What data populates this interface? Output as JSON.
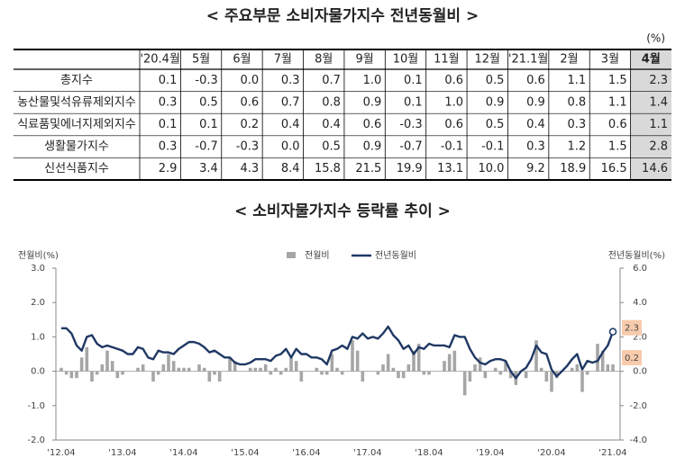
{
  "table": {
    "title": "< 주요부문 소비자물가지수 전년동월비 >",
    "unit": "(%)",
    "columns": [
      "'20.4월",
      "5월",
      "6월",
      "7월",
      "8월",
      "9월",
      "10월",
      "11월",
      "12월",
      "'21.1월",
      "2월",
      "3월",
      "4월"
    ],
    "rows": [
      {
        "label": "총지수",
        "values": [
          "0.1",
          "-0.3",
          "0.0",
          "0.3",
          "0.7",
          "1.0",
          "0.1",
          "0.6",
          "0.5",
          "0.6",
          "1.1",
          "1.5",
          "2.3"
        ]
      },
      {
        "label": "농산물및석유류제외지수",
        "values": [
          "0.3",
          "0.5",
          "0.6",
          "0.7",
          "0.8",
          "0.9",
          "0.1",
          "1.0",
          "0.9",
          "0.9",
          "0.8",
          "1.1",
          "1.4"
        ]
      },
      {
        "label": "식료품및에너지제외지수",
        "values": [
          "0.1",
          "0.1",
          "0.2",
          "0.4",
          "0.4",
          "0.6",
          "-0.3",
          "0.6",
          "0.5",
          "0.4",
          "0.3",
          "0.6",
          "1.1"
        ]
      },
      {
        "label": "생활물가지수",
        "values": [
          "0.3",
          "-0.7",
          "-0.3",
          "0.0",
          "0.5",
          "0.9",
          "-0.7",
          "-0.1",
          "-0.1",
          "0.3",
          "1.2",
          "1.5",
          "2.8"
        ]
      },
      {
        "label": "신선식품지수",
        "values": [
          "2.9",
          "3.4",
          "4.3",
          "8.4",
          "15.8",
          "21.5",
          "19.9",
          "13.1",
          "10.0",
          "9.2",
          "18.9",
          "16.5",
          "14.6"
        ]
      }
    ]
  },
  "chart_data": {
    "type": "combo",
    "title": "< 소비자물가지수 등락률 추이 >",
    "y_label": "전월비(%)",
    "y2_label": "전년동월비(%)",
    "categories": [
      "'12.04",
      null,
      null,
      null,
      null,
      null,
      null,
      null,
      null,
      null,
      null,
      null,
      "'13.04",
      null,
      null,
      null,
      null,
      null,
      null,
      null,
      null,
      null,
      null,
      null,
      "'14.04",
      null,
      null,
      null,
      null,
      null,
      null,
      null,
      null,
      null,
      null,
      null,
      "'15.04",
      null,
      null,
      null,
      null,
      null,
      null,
      null,
      null,
      null,
      null,
      null,
      "'16.04",
      null,
      null,
      null,
      null,
      null,
      null,
      null,
      null,
      null,
      null,
      null,
      "'17.04",
      null,
      null,
      null,
      null,
      null,
      null,
      null,
      null,
      null,
      null,
      null,
      "'18.04",
      null,
      null,
      null,
      null,
      null,
      null,
      null,
      null,
      null,
      null,
      null,
      "'19.04",
      null,
      null,
      null,
      null,
      null,
      null,
      null,
      null,
      null,
      null,
      null,
      "'20.04",
      null,
      null,
      null,
      null,
      null,
      null,
      null,
      null,
      null,
      null,
      null,
      "'21.04"
    ],
    "series": [
      {
        "name": "전월비",
        "type": "bar",
        "color": "#a6a6a6",
        "values": [
          0.1,
          -0.1,
          -0.2,
          -0.2,
          0.4,
          0.7,
          -0.3,
          -0.1,
          0.2,
          0.6,
          0.3,
          -0.2,
          -0.1,
          0.0,
          0.0,
          0.1,
          0.2,
          0.0,
          -0.3,
          -0.1,
          0.2,
          0.5,
          0.3,
          0.1,
          0.1,
          0.1,
          0.0,
          0.2,
          0.1,
          -0.3,
          -0.1,
          -0.3,
          0.0,
          0.4,
          0.3,
          0.0,
          0.0,
          0.1,
          0.1,
          0.1,
          0.2,
          -0.1,
          0.1,
          -0.1,
          0.1,
          0.4,
          0.3,
          -0.3,
          0.0,
          0.0,
          0.1,
          -0.1,
          -0.1,
          0.5,
          0.1,
          -0.1,
          0.0,
          0.9,
          0.6,
          -0.3,
          0.0,
          0.0,
          -0.1,
          0.2,
          0.5,
          0.1,
          -0.2,
          -0.2,
          0.2,
          0.6,
          0.8,
          -0.1,
          -0.1,
          0.0,
          0.0,
          0.3,
          0.5,
          0.6,
          0.0,
          -0.7,
          -0.3,
          0.2,
          0.4,
          -0.2,
          0.0,
          0.1,
          -0.1,
          0.3,
          -0.2,
          -0.4,
          0.0,
          -0.2,
          0.0,
          0.9,
          0.1,
          -0.3,
          -0.6,
          -0.2,
          0.0,
          0.0,
          0.1,
          0.2,
          -0.6,
          -0.1,
          0.0,
          0.8,
          0.6,
          0.2,
          0.2
        ]
      },
      {
        "name": "전년동월비",
        "type": "line",
        "axis": "y2",
        "color": "#1f3864",
        "values": [
          2.5,
          2.5,
          2.2,
          1.5,
          1.2,
          2.0,
          2.1,
          1.6,
          1.4,
          1.5,
          1.4,
          1.3,
          1.2,
          1.0,
          1.0,
          1.4,
          1.3,
          0.8,
          0.7,
          1.2,
          1.1,
          1.1,
          1.0,
          1.3,
          1.5,
          1.7,
          1.7,
          1.6,
          1.4,
          1.1,
          1.2,
          1.0,
          0.8,
          0.8,
          0.5,
          0.4,
          0.4,
          0.5,
          0.7,
          0.7,
          0.7,
          0.6,
          0.9,
          1.0,
          1.3,
          0.8,
          1.3,
          1.0,
          1.0,
          0.8,
          0.8,
          0.7,
          0.4,
          1.2,
          1.3,
          1.5,
          1.3,
          2.0,
          1.9,
          2.2,
          1.9,
          2.0,
          1.9,
          2.2,
          2.6,
          2.1,
          1.8,
          1.3,
          1.5,
          1.0,
          1.4,
          1.3,
          1.6,
          1.5,
          1.5,
          1.5,
          1.4,
          2.1,
          2.0,
          2.0,
          1.3,
          0.8,
          0.5,
          0.4,
          0.6,
          0.7,
          0.7,
          0.6,
          0.0,
          -0.4,
          0.0,
          0.2,
          0.7,
          1.5,
          1.1,
          1.0,
          0.1,
          -0.3,
          0.0,
          0.3,
          0.7,
          1.0,
          0.1,
          0.6,
          0.5,
          0.6,
          1.1,
          1.5,
          2.3
        ]
      }
    ],
    "ylim": [
      -2,
      3
    ],
    "yticks": [
      {
        "value": -2,
        "label": "-2.0"
      },
      {
        "value": -1,
        "label": "-1.0"
      },
      {
        "value": 0,
        "label": "0.0"
      },
      {
        "value": 1,
        "label": "1.0"
      },
      {
        "value": 2,
        "label": "2.0"
      },
      {
        "value": 3,
        "label": "3.0"
      }
    ],
    "y2lim": [
      -4,
      6
    ],
    "y2ticks": [
      {
        "value": -4,
        "label": "-4.0"
      },
      {
        "value": -2,
        "label": "-2.0"
      },
      {
        "value": 0,
        "label": "0.0"
      },
      {
        "value": 2,
        "label": "2.0"
      },
      {
        "value": 4,
        "label": "4.0"
      },
      {
        "value": 6,
        "label": "6.0"
      }
    ],
    "grid": false
  }
}
